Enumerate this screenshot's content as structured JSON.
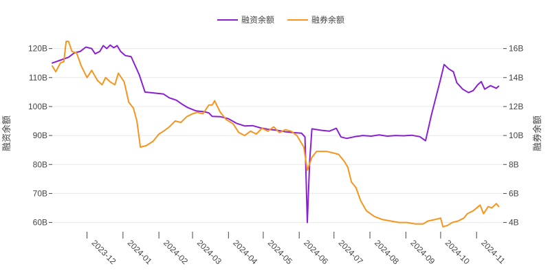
{
  "chart_data": {
    "type": "line",
    "title": "",
    "legend_placement": "top-center",
    "grid": true,
    "x_axis": {
      "type": "date",
      "range": [
        "2023-11-01",
        "2024-11-24"
      ],
      "tick_labels": [
        "2023-12",
        "2024-01",
        "2024-02",
        "2024-03",
        "2024-04",
        "2024-05",
        "2024-06",
        "2024-07",
        "2024-08",
        "2024-09",
        "2024-10",
        "2024-11"
      ],
      "tick_dates": [
        "2023-12-01",
        "2024-01-01",
        "2024-02-01",
        "2024-03-01",
        "2024-04-01",
        "2024-05-01",
        "2024-06-01",
        "2024-07-01",
        "2024-08-01",
        "2024-09-01",
        "2024-10-01",
        "2024-11-01"
      ],
      "label_rotation": 45
    },
    "y_left": {
      "label": "融资余额",
      "range": [
        58,
        123
      ],
      "ticks": [
        60,
        70,
        80,
        90,
        100,
        110,
        120
      ],
      "tick_labels": [
        "60B",
        "70B",
        "80B",
        "90B",
        "100B",
        "110B",
        "120B"
      ]
    },
    "y_right": {
      "label": "融券余额",
      "range": [
        3.6,
        16.6
      ],
      "ticks": [
        4,
        6,
        8,
        10,
        12,
        14,
        16
      ],
      "tick_labels": [
        "4B",
        "6B",
        "8B",
        "10B",
        "12B",
        "14B",
        "16B"
      ]
    },
    "series": [
      {
        "name": "融资余额",
        "color": "#8a1fd2",
        "axis": "left",
        "points": [
          [
            "2023-11-01",
            115.0
          ],
          [
            "2023-11-08",
            116.0
          ],
          [
            "2023-11-15",
            117.0
          ],
          [
            "2023-11-20",
            118.5
          ],
          [
            "2023-11-25",
            119.0
          ],
          [
            "2023-11-30",
            120.5
          ],
          [
            "2023-12-05",
            120.0
          ],
          [
            "2023-12-08",
            118.2
          ],
          [
            "2023-12-12",
            119.0
          ],
          [
            "2023-12-15",
            121.0
          ],
          [
            "2023-12-18",
            120.0
          ],
          [
            "2023-12-21",
            121.2
          ],
          [
            "2023-12-24",
            120.3
          ],
          [
            "2023-12-27",
            121.0
          ],
          [
            "2023-12-30",
            119.0
          ],
          [
            "2024-01-03",
            117.6
          ],
          [
            "2024-01-08",
            117.2
          ],
          [
            "2024-01-15",
            111.0
          ],
          [
            "2024-01-20",
            105.0
          ],
          [
            "2024-02-01",
            104.5
          ],
          [
            "2024-02-05",
            104.3
          ],
          [
            "2024-02-10",
            103.0
          ],
          [
            "2024-02-16",
            102.2
          ],
          [
            "2024-02-21",
            100.8
          ],
          [
            "2024-02-26",
            99.6
          ],
          [
            "2024-03-04",
            98.5
          ],
          [
            "2024-03-11",
            98.2
          ],
          [
            "2024-03-15",
            97.8
          ],
          [
            "2024-03-18",
            96.6
          ],
          [
            "2024-03-25",
            96.5
          ],
          [
            "2024-04-01",
            95.8
          ],
          [
            "2024-04-08",
            94.2
          ],
          [
            "2024-04-15",
            93.3
          ],
          [
            "2024-04-22",
            93.4
          ],
          [
            "2024-04-29",
            92.6
          ],
          [
            "2024-05-06",
            92.1
          ],
          [
            "2024-05-13",
            91.8
          ],
          [
            "2024-05-20",
            91.3
          ],
          [
            "2024-05-27",
            91.0
          ],
          [
            "2024-06-03",
            90.8
          ],
          [
            "2024-06-06",
            89.5
          ],
          [
            "2024-06-08",
            60.0
          ],
          [
            "2024-06-10",
            81.0
          ],
          [
            "2024-06-12",
            92.3
          ],
          [
            "2024-06-20",
            91.8
          ],
          [
            "2024-06-27",
            91.5
          ],
          [
            "2024-07-03",
            92.5
          ],
          [
            "2024-07-07",
            89.5
          ],
          [
            "2024-07-12",
            89.0
          ],
          [
            "2024-07-19",
            89.6
          ],
          [
            "2024-07-26",
            90.0
          ],
          [
            "2024-08-02",
            89.8
          ],
          [
            "2024-08-09",
            90.2
          ],
          [
            "2024-08-16",
            89.8
          ],
          [
            "2024-08-23",
            90.0
          ],
          [
            "2024-08-30",
            89.9
          ],
          [
            "2024-09-06",
            90.1
          ],
          [
            "2024-09-13",
            89.6
          ],
          [
            "2024-09-18",
            88.2
          ],
          [
            "2024-09-23",
            97.0
          ],
          [
            "2024-10-01",
            109.5
          ],
          [
            "2024-10-04",
            114.5
          ],
          [
            "2024-10-08",
            113.0
          ],
          [
            "2024-10-12",
            112.0
          ],
          [
            "2024-10-15",
            108.2
          ],
          [
            "2024-10-20",
            106.0
          ],
          [
            "2024-10-25",
            104.8
          ],
          [
            "2024-10-29",
            105.5
          ],
          [
            "2024-11-02",
            107.5
          ],
          [
            "2024-11-05",
            108.6
          ],
          [
            "2024-11-08",
            106.0
          ],
          [
            "2024-11-13",
            107.2
          ],
          [
            "2024-11-18",
            106.3
          ],
          [
            "2024-11-20",
            107.0
          ]
        ]
      },
      {
        "name": "融券余额",
        "color": "#f7941d",
        "axis": "right",
        "points": [
          [
            "2023-11-01",
            14.8
          ],
          [
            "2023-11-04",
            14.4
          ],
          [
            "2023-11-08",
            15.0
          ],
          [
            "2023-11-11",
            15.1
          ],
          [
            "2023-11-13",
            16.5
          ],
          [
            "2023-11-15",
            16.5
          ],
          [
            "2023-11-18",
            15.8
          ],
          [
            "2023-11-22",
            15.7
          ],
          [
            "2023-11-26",
            14.8
          ],
          [
            "2023-12-01",
            14.0
          ],
          [
            "2023-12-05",
            14.5
          ],
          [
            "2023-12-10",
            13.8
          ],
          [
            "2023-12-14",
            13.5
          ],
          [
            "2023-12-17",
            14.0
          ],
          [
            "2023-12-21",
            13.7
          ],
          [
            "2023-12-25",
            13.5
          ],
          [
            "2023-12-28",
            14.3
          ],
          [
            "2024-01-02",
            13.7
          ],
          [
            "2024-01-06",
            12.3
          ],
          [
            "2024-01-10",
            11.9
          ],
          [
            "2024-01-13",
            11.0
          ],
          [
            "2024-01-16",
            9.2
          ],
          [
            "2024-01-21",
            9.3
          ],
          [
            "2024-01-27",
            9.6
          ],
          [
            "2024-02-01",
            10.1
          ],
          [
            "2024-02-05",
            10.3
          ],
          [
            "2024-02-10",
            10.6
          ],
          [
            "2024-02-15",
            11.0
          ],
          [
            "2024-02-20",
            10.9
          ],
          [
            "2024-02-25",
            11.3
          ],
          [
            "2024-03-01",
            11.5
          ],
          [
            "2024-03-05",
            11.6
          ],
          [
            "2024-03-10",
            11.5
          ],
          [
            "2024-03-15",
            12.1
          ],
          [
            "2024-03-18",
            12.1
          ],
          [
            "2024-03-20",
            12.4
          ],
          [
            "2024-03-25",
            11.6
          ],
          [
            "2024-03-30",
            11.1
          ],
          [
            "2024-04-05",
            10.8
          ],
          [
            "2024-04-10",
            10.2
          ],
          [
            "2024-04-15",
            10.0
          ],
          [
            "2024-04-20",
            10.3
          ],
          [
            "2024-04-25",
            10.1
          ],
          [
            "2024-04-30",
            10.5
          ],
          [
            "2024-05-05",
            10.3
          ],
          [
            "2024-05-10",
            10.6
          ],
          [
            "2024-05-15",
            10.2
          ],
          [
            "2024-05-20",
            10.4
          ],
          [
            "2024-05-25",
            10.3
          ],
          [
            "2024-05-30",
            10.0
          ],
          [
            "2024-06-05",
            9.2
          ],
          [
            "2024-06-08",
            7.6
          ],
          [
            "2024-06-12",
            8.5
          ],
          [
            "2024-06-16",
            8.9
          ],
          [
            "2024-06-20",
            8.9
          ],
          [
            "2024-06-25",
            8.9
          ],
          [
            "2024-06-30",
            8.8
          ],
          [
            "2024-07-05",
            8.7
          ],
          [
            "2024-07-10",
            8.2
          ],
          [
            "2024-07-13",
            7.8
          ],
          [
            "2024-07-16",
            6.8
          ],
          [
            "2024-07-20",
            6.4
          ],
          [
            "2024-07-24",
            5.5
          ],
          [
            "2024-07-29",
            4.8
          ],
          [
            "2024-08-05",
            4.4
          ],
          [
            "2024-08-12",
            4.2
          ],
          [
            "2024-08-19",
            4.1
          ],
          [
            "2024-08-26",
            4.0
          ],
          [
            "2024-09-02",
            4.0
          ],
          [
            "2024-09-09",
            3.9
          ],
          [
            "2024-09-16",
            3.9
          ],
          [
            "2024-09-20",
            4.1
          ],
          [
            "2024-09-26",
            4.2
          ],
          [
            "2024-10-01",
            4.3
          ],
          [
            "2024-10-03",
            3.7
          ],
          [
            "2024-10-07",
            3.8
          ],
          [
            "2024-10-11",
            4.0
          ],
          [
            "2024-10-16",
            4.1
          ],
          [
            "2024-10-21",
            4.3
          ],
          [
            "2024-10-24",
            4.6
          ],
          [
            "2024-10-29",
            4.8
          ],
          [
            "2024-11-04",
            5.2
          ],
          [
            "2024-11-07",
            4.6
          ],
          [
            "2024-11-11",
            5.1
          ],
          [
            "2024-11-14",
            5.0
          ],
          [
            "2024-11-18",
            5.3
          ],
          [
            "2024-11-20",
            5.1
          ]
        ]
      }
    ]
  }
}
